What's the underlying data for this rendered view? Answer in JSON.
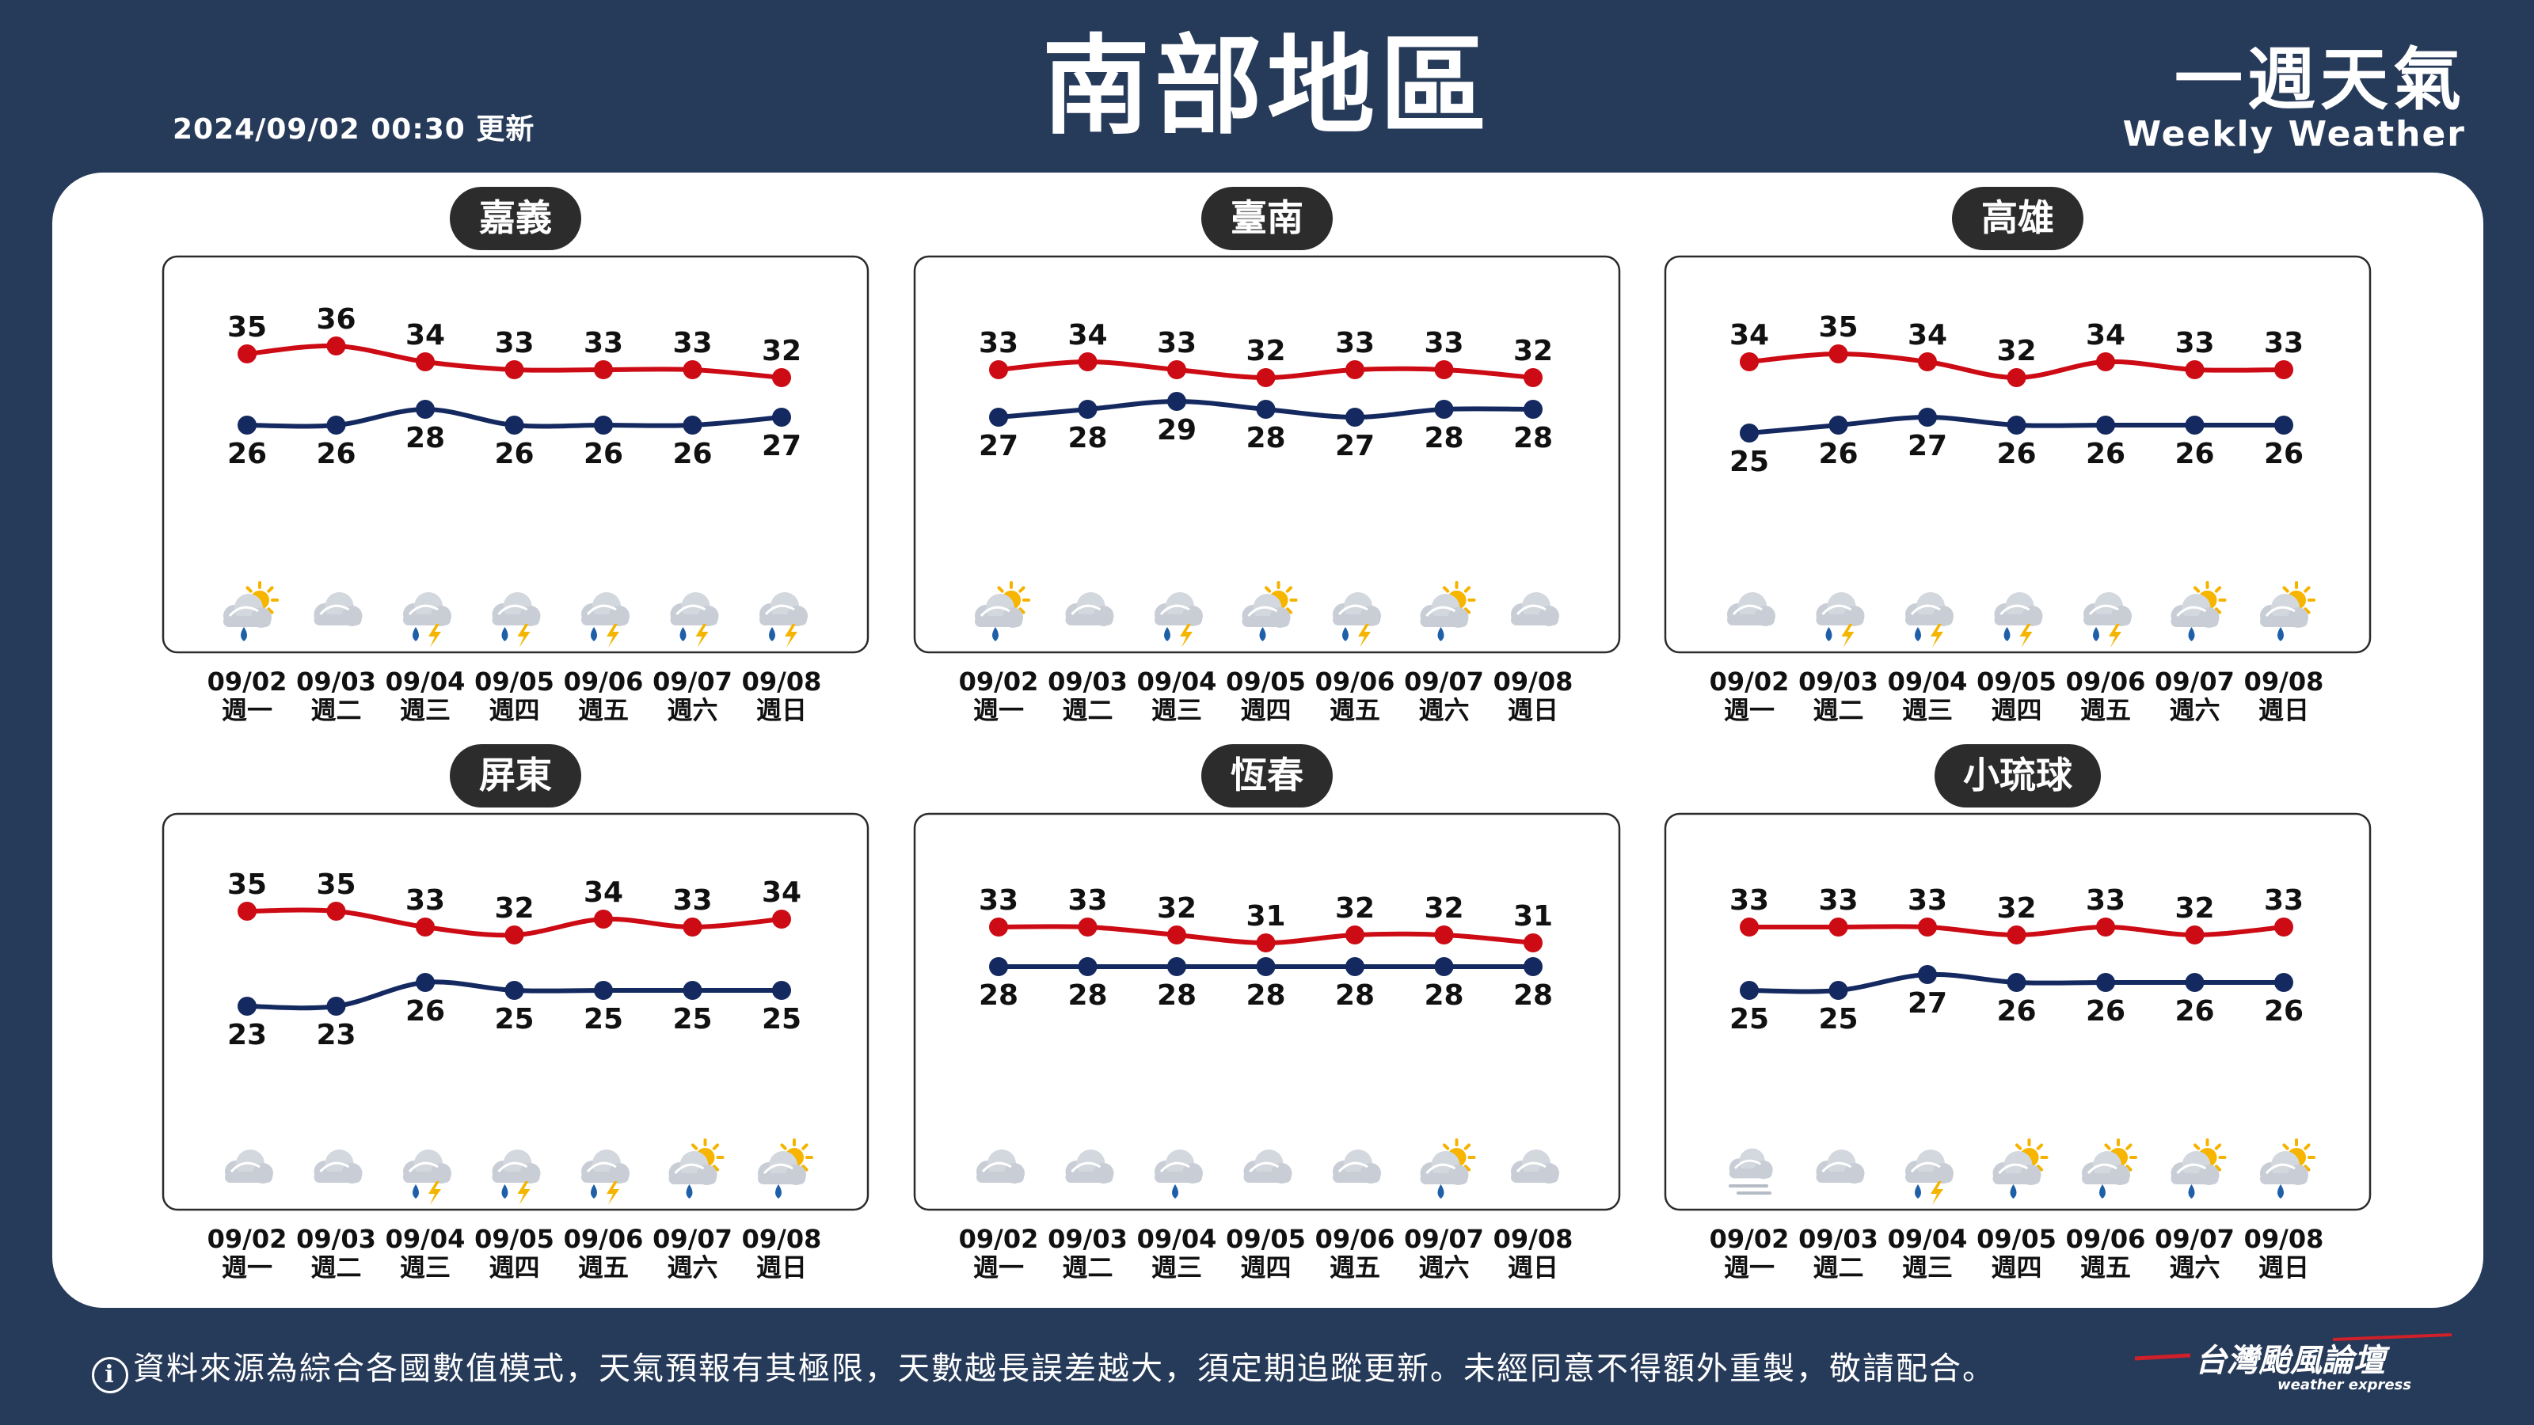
{
  "header": {
    "updated": "2024/09/02 00:30 更新",
    "title": "南部地區",
    "brand_zh": "一週天氣",
    "brand_en": "Weekly Weather"
  },
  "days": [
    {
      "date": "09/02",
      "weekday": "週一"
    },
    {
      "date": "09/03",
      "weekday": "週二"
    },
    {
      "date": "09/04",
      "weekday": "週三"
    },
    {
      "date": "09/05",
      "weekday": "週四"
    },
    {
      "date": "09/06",
      "weekday": "週五"
    },
    {
      "date": "09/07",
      "weekday": "週六"
    },
    {
      "date": "09/08",
      "weekday": "週日"
    }
  ],
  "colors": {
    "background": "#263a59",
    "high": "#cc0b14",
    "low": "#14295f",
    "title_pill": "#2c2c2c"
  },
  "cities": [
    {
      "name": "嘉義",
      "high": [
        35,
        36,
        34,
        33,
        33,
        33,
        32
      ],
      "low": [
        26,
        26,
        28,
        26,
        26,
        26,
        27
      ],
      "icons": [
        "sun-cloud-rain-icon",
        "cloud-icon",
        "thunder-rain-icon",
        "thunder-rain-icon",
        "thunder-rain-icon",
        "thunder-rain-icon",
        "thunder-rain-icon"
      ]
    },
    {
      "name": "臺南",
      "high": [
        33,
        34,
        33,
        32,
        33,
        33,
        32
      ],
      "low": [
        27,
        28,
        29,
        28,
        27,
        28,
        28
      ],
      "icons": [
        "sun-cloud-rain-icon",
        "cloud-icon",
        "thunder-rain-icon",
        "sun-cloud-rain-icon",
        "thunder-rain-icon",
        "sun-cloud-rain-icon",
        "cloud-icon"
      ]
    },
    {
      "name": "高雄",
      "high": [
        34,
        35,
        34,
        32,
        34,
        33,
        33
      ],
      "low": [
        25,
        26,
        27,
        26,
        26,
        26,
        26
      ],
      "icons": [
        "cloud-icon",
        "thunder-rain-icon",
        "thunder-rain-icon",
        "thunder-rain-icon",
        "thunder-rain-icon",
        "sun-cloud-rain-icon",
        "sun-cloud-rain-icon"
      ]
    },
    {
      "name": "屏東",
      "high": [
        35,
        35,
        33,
        32,
        34,
        33,
        34
      ],
      "low": [
        23,
        23,
        26,
        25,
        25,
        25,
        25
      ],
      "icons": [
        "cloud-icon",
        "cloud-icon",
        "thunder-rain-icon",
        "thunder-rain-icon",
        "thunder-rain-icon",
        "sun-cloud-rain-icon",
        "sun-cloud-rain-icon"
      ]
    },
    {
      "name": "恆春",
      "high": [
        33,
        33,
        32,
        31,
        32,
        32,
        31
      ],
      "low": [
        28,
        28,
        28,
        28,
        28,
        28,
        28
      ],
      "icons": [
        "cloud-icon",
        "cloud-icon",
        "cloud-rain-icon",
        "cloud-icon",
        "cloud-icon",
        "sun-cloud-rain-icon",
        "cloud-icon"
      ]
    },
    {
      "name": "小琉球",
      "high": [
        33,
        33,
        33,
        32,
        33,
        32,
        33
      ],
      "low": [
        25,
        25,
        27,
        26,
        26,
        26,
        26
      ],
      "icons": [
        "cloud-fog-icon",
        "cloud-icon",
        "thunder-rain-icon",
        "sun-cloud-rain-icon",
        "sun-cloud-rain-icon",
        "sun-cloud-rain-icon",
        "sun-cloud-rain-icon"
      ]
    }
  ],
  "footer": {
    "disclaimer": "資料來源為綜合各國數值模式，天氣預報有其極限，天數越長誤差越大，須定期追蹤更新。未經同意不得額外重製，敬請配合。",
    "logo_zh": "台灣颱風論壇",
    "logo_en": "weather express"
  }
}
